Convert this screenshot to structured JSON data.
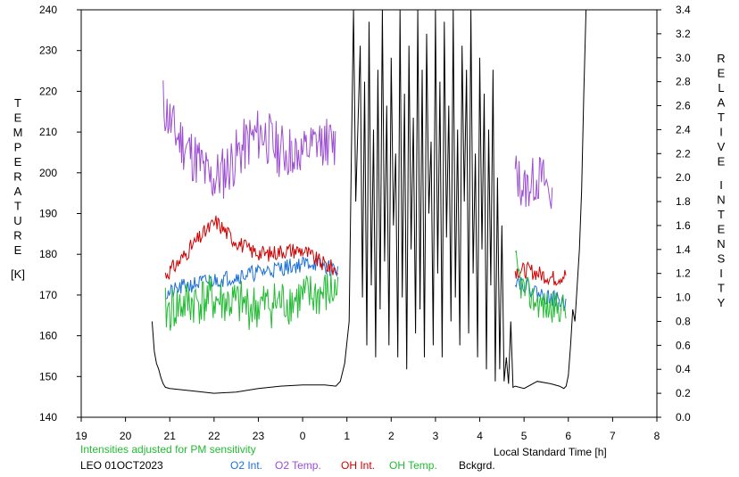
{
  "chart_data": {
    "type": "line",
    "left_axis": {
      "label_letters": [
        "T",
        "E",
        "M",
        "P",
        "E",
        "R",
        "A",
        "T",
        "U",
        "R",
        "E"
      ],
      "unit": "[K]",
      "range": [
        140,
        240
      ],
      "ticks": [
        "240",
        "230",
        "220",
        "210",
        "200",
        "190",
        "180",
        "170",
        "160",
        "150",
        "140"
      ]
    },
    "right_axis": {
      "label_word1": [
        "R",
        "E",
        "L",
        "A",
        "T",
        "I",
        "V",
        "E"
      ],
      "label_word2": [
        "I",
        "N",
        "T",
        "E",
        "N",
        "S",
        "I",
        "T",
        "Y"
      ],
      "range": [
        0.0,
        3.4
      ],
      "ticks": [
        "3.4",
        "3.2",
        "3.0",
        "2.8",
        "2.6",
        "2.4",
        "2.2",
        "2.0",
        "1.8",
        "1.6",
        "1.4",
        "1.2",
        "1.0",
        "0.8",
        "0.6",
        "0.4",
        "0.2",
        "0.0"
      ]
    },
    "x_axis": {
      "label": "Local Standard Time [h]",
      "range": [
        19,
        32
      ],
      "ticks": [
        "19",
        "20",
        "21",
        "22",
        "23",
        "0",
        "1",
        "2",
        "3",
        "4",
        "5",
        "6",
        "7",
        "8"
      ]
    },
    "note": "Intensities adjusted for PM sensitivity",
    "station": "LEO 01OCT2023",
    "legend": [
      {
        "name": "O2 Int.",
        "color": "#1a6fd6"
      },
      {
        "name": "O2 Temp.",
        "color": "#9b4dd1"
      },
      {
        "name": "OH Int.",
        "color": "#d00000"
      },
      {
        "name": "OH Temp.",
        "color": "#22bb33"
      },
      {
        "name": "Bckgrd.",
        "color": "#000000"
      }
    ],
    "series": [
      {
        "legend_index": 1,
        "axis": "left",
        "segments": [
          {
            "x0": 20.85,
            "x1": 23.75,
            "base": [
              [
                20.85,
                217
              ],
              [
                21.1,
                210
              ],
              [
                21.4,
                206
              ],
              [
                21.7,
                202
              ],
              [
                21.9,
                198
              ],
              [
                22.2,
                200
              ],
              [
                22.5,
                204
              ],
              [
                22.8,
                208
              ],
              [
                23.1,
                210
              ],
              [
                23.4,
                206
              ],
              [
                23.75,
                205
              ]
            ],
            "amp": 7,
            "seed": 11
          },
          {
            "x0": 23.75,
            "x1": 24.75,
            "base": [
              [
                23.75,
                205
              ],
              [
                24.0,
                204
              ],
              [
                24.25,
                206
              ],
              [
                24.5,
                208
              ],
              [
                24.75,
                206
              ]
            ],
            "amp": 6,
            "seed": 12
          },
          {
            "x0": 28.8,
            "x1": 29.65,
            "base": [
              [
                28.8,
                200
              ],
              [
                29.0,
                196
              ],
              [
                29.2,
                198
              ],
              [
                29.4,
                199
              ],
              [
                29.65,
                194
              ]
            ],
            "amp": 6,
            "seed": 13
          }
        ]
      },
      {
        "legend_index": 0,
        "axis": "left",
        "segments": [
          {
            "x0": 20.9,
            "x1": 24.8,
            "base": [
              [
                20.9,
                170
              ],
              [
                21.3,
                172
              ],
              [
                21.7,
                173
              ],
              [
                22.2,
                174
              ],
              [
                22.7,
                175
              ],
              [
                23.2,
                176
              ],
              [
                23.7,
                177
              ],
              [
                24.2,
                178
              ],
              [
                24.8,
                176
              ]
            ],
            "amp": 2,
            "seed": 21
          },
          {
            "x0": 28.8,
            "x1": 29.95,
            "base": [
              [
                28.8,
                174
              ],
              [
                29.1,
                172
              ],
              [
                29.4,
                170
              ],
              [
                29.7,
                169
              ],
              [
                29.95,
                168
              ]
            ],
            "amp": 2,
            "seed": 22
          }
        ]
      },
      {
        "legend_index": 2,
        "axis": "left",
        "segments": [
          {
            "x0": 20.9,
            "x1": 24.8,
            "base": [
              [
                20.9,
                175
              ],
              [
                21.2,
                178
              ],
              [
                21.5,
                182
              ],
              [
                21.85,
                186
              ],
              [
                22.05,
                188
              ],
              [
                22.4,
                184
              ],
              [
                22.8,
                181
              ],
              [
                23.2,
                180
              ],
              [
                23.6,
                181
              ],
              [
                24.0,
                181
              ],
              [
                24.4,
                178
              ],
              [
                24.8,
                176
              ]
            ],
            "amp": 2,
            "seed": 31
          },
          {
            "x0": 28.8,
            "x1": 29.95,
            "base": [
              [
                28.8,
                176
              ],
              [
                29.1,
                176
              ],
              [
                29.4,
                175
              ],
              [
                29.7,
                174
              ],
              [
                29.95,
                175
              ]
            ],
            "amp": 2,
            "seed": 32
          }
        ]
      },
      {
        "legend_index": 3,
        "axis": "left",
        "segments": [
          {
            "x0": 20.9,
            "x1": 24.8,
            "base": [
              [
                20.9,
                166
              ],
              [
                21.4,
                168
              ],
              [
                21.9,
                169
              ],
              [
                22.4,
                168
              ],
              [
                22.9,
                167
              ],
              [
                23.4,
                168
              ],
              [
                23.9,
                169
              ],
              [
                24.4,
                170
              ],
              [
                24.8,
                171
              ]
            ],
            "amp": 6,
            "seed": 41
          },
          {
            "x0": 28.8,
            "x1": 29.95,
            "base": [
              [
                28.8,
                178
              ],
              [
                28.95,
                172
              ],
              [
                29.2,
                169
              ],
              [
                29.5,
                167
              ],
              [
                29.95,
                167
              ]
            ],
            "amp": 4,
            "seed": 42
          }
        ]
      },
      {
        "legend_index": 4,
        "axis": "right",
        "points": [
          [
            20.6,
            0.8
          ],
          [
            20.65,
            0.55
          ],
          [
            20.7,
            0.45
          ],
          [
            20.75,
            0.4
          ],
          [
            20.8,
            0.33
          ],
          [
            20.85,
            0.28
          ],
          [
            20.9,
            0.25
          ],
          [
            21.0,
            0.24
          ],
          [
            21.5,
            0.22
          ],
          [
            22.0,
            0.2
          ],
          [
            22.5,
            0.21
          ],
          [
            23.0,
            0.24
          ],
          [
            23.5,
            0.26
          ],
          [
            24.0,
            0.27
          ],
          [
            24.5,
            0.27
          ],
          [
            24.75,
            0.26
          ],
          [
            24.85,
            0.3
          ],
          [
            24.95,
            0.45
          ],
          [
            25.05,
            0.8
          ],
          [
            25.1,
            2.2
          ],
          [
            25.15,
            3.4
          ],
          [
            25.2,
            1.8
          ],
          [
            25.3,
            3.1
          ],
          [
            25.35,
            1.0
          ],
          [
            25.4,
            2.8
          ],
          [
            25.45,
            0.6
          ],
          [
            25.5,
            3.3
          ],
          [
            25.55,
            1.1
          ],
          [
            25.6,
            2.4
          ],
          [
            25.65,
            0.5
          ],
          [
            25.7,
            2.9
          ],
          [
            25.75,
            0.9
          ],
          [
            25.8,
            3.4
          ],
          [
            25.85,
            1.3
          ],
          [
            25.9,
            2.6
          ],
          [
            25.95,
            0.6
          ],
          [
            26.0,
            3.0
          ],
          [
            26.05,
            1.6
          ],
          [
            26.1,
            2.2
          ],
          [
            26.15,
            0.5
          ],
          [
            26.2,
            3.4
          ],
          [
            26.25,
            1.0
          ],
          [
            26.3,
            2.7
          ],
          [
            26.35,
            0.4
          ],
          [
            26.4,
            3.1
          ],
          [
            26.45,
            1.4
          ],
          [
            26.5,
            2.5
          ],
          [
            26.55,
            0.7
          ],
          [
            26.6,
            3.4
          ],
          [
            26.65,
            0.9
          ],
          [
            26.7,
            2.9
          ],
          [
            26.75,
            0.5
          ],
          [
            26.8,
            3.2
          ],
          [
            26.85,
            1.7
          ],
          [
            26.9,
            2.3
          ],
          [
            26.95,
            0.6
          ],
          [
            27.0,
            3.4
          ],
          [
            27.05,
            1.2
          ],
          [
            27.1,
            2.8
          ],
          [
            27.15,
            0.5
          ],
          [
            27.2,
            3.3
          ],
          [
            27.25,
            1.5
          ],
          [
            27.3,
            2.6
          ],
          [
            27.35,
            0.8
          ],
          [
            27.4,
            3.4
          ],
          [
            27.45,
            1.0
          ],
          [
            27.5,
            2.4
          ],
          [
            27.55,
            0.6
          ],
          [
            27.6,
            3.1
          ],
          [
            27.65,
            1.8
          ],
          [
            27.7,
            2.9
          ],
          [
            27.75,
            0.7
          ],
          [
            27.8,
            3.4
          ],
          [
            27.85,
            1.2
          ],
          [
            27.9,
            2.2
          ],
          [
            27.95,
            0.5
          ],
          [
            28.0,
            3.0
          ],
          [
            28.05,
            1.4
          ],
          [
            28.1,
            2.7
          ],
          [
            28.15,
            0.4
          ],
          [
            28.2,
            2.4
          ],
          [
            28.25,
            1.1
          ],
          [
            28.3,
            2.9
          ],
          [
            28.35,
            0.3
          ],
          [
            28.4,
            2.0
          ],
          [
            28.45,
            0.4
          ],
          [
            28.5,
            1.6
          ],
          [
            28.55,
            0.3
          ],
          [
            28.6,
            0.5
          ],
          [
            28.65,
            0.28
          ],
          [
            28.7,
            0.8
          ],
          [
            28.75,
            0.25
          ],
          [
            28.8,
            0.26
          ],
          [
            29.0,
            0.24
          ],
          [
            29.3,
            0.3
          ],
          [
            29.6,
            0.28
          ],
          [
            29.8,
            0.26
          ],
          [
            29.9,
            0.24
          ],
          [
            29.95,
            0.26
          ],
          [
            30.0,
            0.35
          ],
          [
            30.05,
            0.6
          ],
          [
            30.1,
            0.9
          ],
          [
            30.15,
            0.8
          ],
          [
            30.2,
            1.1
          ],
          [
            30.25,
            1.4
          ],
          [
            30.3,
            1.9
          ],
          [
            30.35,
            2.7
          ],
          [
            30.4,
            3.4
          ]
        ]
      }
    ]
  }
}
